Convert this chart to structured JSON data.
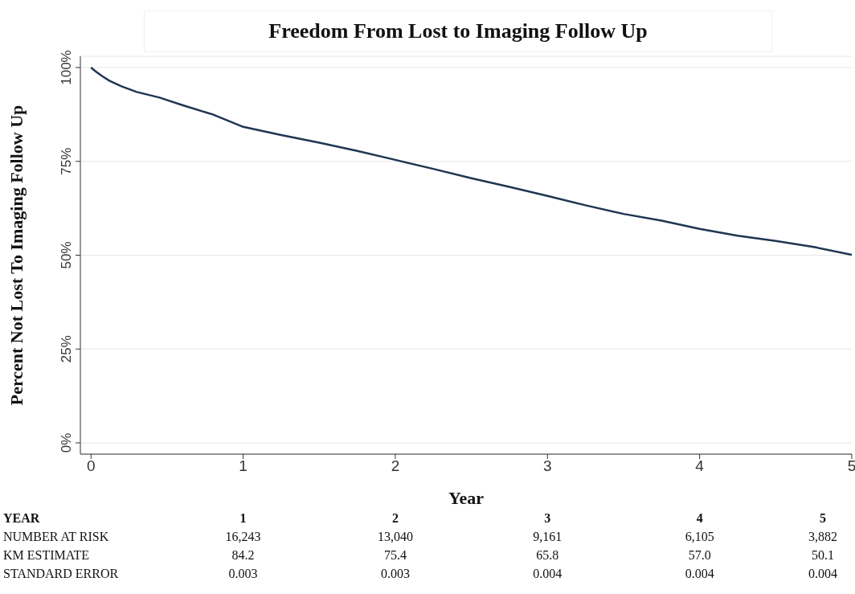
{
  "chart_data": {
    "type": "line",
    "title": "Freedom From Lost to Imaging Follow Up",
    "xlabel": "Year",
    "ylabel": "Percent Not Lost To Imaging Follow Up",
    "series": [
      {
        "color": "#1f3552",
        "x": [
          0,
          0.03,
          0.07,
          0.12,
          0.2,
          0.3,
          0.45,
          0.6,
          0.8,
          1,
          1.25,
          1.5,
          1.75,
          2,
          2.25,
          2.5,
          2.75,
          3,
          3.25,
          3.5,
          3.75,
          4,
          4.25,
          4.5,
          4.75,
          5
        ],
        "values": [
          100,
          99,
          97.8,
          96.5,
          95,
          93.5,
          92,
          90,
          87.5,
          84.2,
          82,
          80,
          77.8,
          75.4,
          73,
          70.5,
          68.2,
          65.8,
          63.3,
          61,
          59.2,
          57.0,
          55.2,
          53.8,
          52.2,
          50.1
        ]
      }
    ],
    "xlim": [
      -0.07,
      5
    ],
    "xticks": [
      0,
      1,
      2,
      3,
      4,
      5
    ],
    "ylim": [
      -3,
      103
    ],
    "yticks": [
      {
        "value": 0,
        "label": "0%"
      },
      {
        "value": 25,
        "label": "25%"
      },
      {
        "value": 50,
        "label": "50%"
      },
      {
        "value": 75,
        "label": "75%"
      },
      {
        "value": 100,
        "label": "100%"
      }
    ],
    "grid": "y",
    "legend": false,
    "marker": "none",
    "line_style": "solid",
    "annotations": [
      "YEAR",
      "1",
      "2",
      "3",
      "4",
      "5",
      "NUMBER AT RISK",
      "16,243",
      "13,040",
      "9,161",
      "6,105",
      "3,882",
      "KM ESTIMATE",
      "84.2",
      "75.4",
      "65.8",
      "57.0",
      "50.1",
      "STANDARD ERROR",
      "0.003",
      "0.003",
      "0.004",
      "0.004",
      "0.004"
    ]
  }
}
